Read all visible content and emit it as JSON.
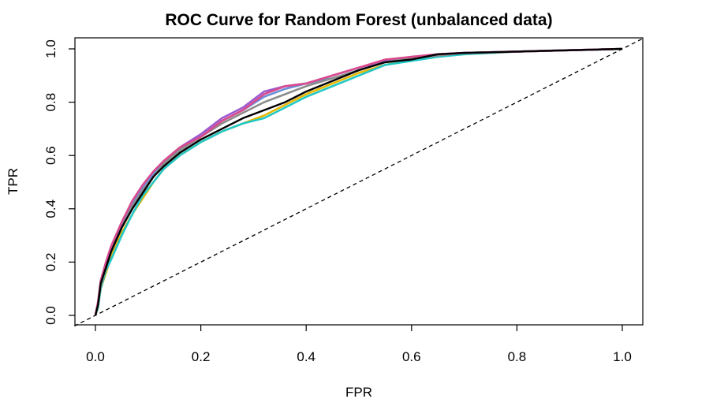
{
  "chart_data": {
    "type": "line",
    "title": "ROC Curve for Random Forest (unbalanced data)",
    "xlabel": "FPR",
    "ylabel": "TPR",
    "xlim": [
      0,
      1
    ],
    "ylim": [
      0,
      1
    ],
    "xticks": [
      0.0,
      0.2,
      0.4,
      0.6,
      0.8,
      1.0
    ],
    "yticks": [
      0.0,
      0.2,
      0.4,
      0.6,
      0.8,
      1.0
    ],
    "xtick_labels": [
      "0.0",
      "0.2",
      "0.4",
      "0.6",
      "0.8",
      "1.0"
    ],
    "ytick_labels": [
      "0.0",
      "0.2",
      "0.4",
      "0.6",
      "0.8",
      "1.0"
    ],
    "grid": false,
    "legend": "none",
    "reference_line": {
      "style": "dashed",
      "color": "#000000",
      "x": [
        0,
        1
      ],
      "y": [
        0,
        1
      ]
    },
    "series": [
      {
        "color": "#000000",
        "x": [
          0,
          0.005,
          0.01,
          0.02,
          0.03,
          0.05,
          0.07,
          0.09,
          0.11,
          0.13,
          0.16,
          0.2,
          0.24,
          0.28,
          0.32,
          0.36,
          0.4,
          0.45,
          0.5,
          0.55,
          0.6,
          0.65,
          0.7,
          0.8,
          0.9,
          1.0
        ],
        "y": [
          0,
          0.04,
          0.12,
          0.18,
          0.24,
          0.33,
          0.4,
          0.46,
          0.52,
          0.56,
          0.61,
          0.66,
          0.7,
          0.74,
          0.77,
          0.8,
          0.84,
          0.88,
          0.92,
          0.95,
          0.96,
          0.98,
          0.985,
          0.99,
          0.995,
          1.0
        ]
      },
      {
        "color": "#e6b800",
        "x": [
          0,
          0.005,
          0.01,
          0.02,
          0.03,
          0.05,
          0.07,
          0.09,
          0.11,
          0.13,
          0.16,
          0.2,
          0.24,
          0.28,
          0.32,
          0.36,
          0.4,
          0.45,
          0.5,
          0.55,
          0.6,
          0.65,
          0.7,
          0.8,
          0.9,
          1.0
        ],
        "y": [
          0,
          0.03,
          0.1,
          0.16,
          0.22,
          0.31,
          0.38,
          0.44,
          0.5,
          0.55,
          0.6,
          0.65,
          0.69,
          0.72,
          0.75,
          0.79,
          0.83,
          0.87,
          0.91,
          0.94,
          0.96,
          0.975,
          0.98,
          0.99,
          0.995,
          1.0
        ]
      },
      {
        "color": "#22c7c7",
        "x": [
          0,
          0.005,
          0.01,
          0.02,
          0.03,
          0.05,
          0.07,
          0.09,
          0.11,
          0.13,
          0.16,
          0.2,
          0.24,
          0.28,
          0.32,
          0.36,
          0.4,
          0.45,
          0.5,
          0.55,
          0.6,
          0.65,
          0.7,
          0.8,
          0.9,
          1.0
        ],
        "y": [
          0,
          0.03,
          0.1,
          0.17,
          0.21,
          0.3,
          0.38,
          0.45,
          0.5,
          0.55,
          0.6,
          0.65,
          0.69,
          0.72,
          0.74,
          0.78,
          0.82,
          0.86,
          0.9,
          0.94,
          0.955,
          0.97,
          0.98,
          0.99,
          0.995,
          1.0
        ]
      },
      {
        "color": "#9b59d0",
        "x": [
          0,
          0.005,
          0.01,
          0.02,
          0.03,
          0.05,
          0.07,
          0.09,
          0.11,
          0.13,
          0.16,
          0.2,
          0.24,
          0.28,
          0.32,
          0.36,
          0.4,
          0.45,
          0.5,
          0.55,
          0.6,
          0.65,
          0.7,
          0.8,
          0.9,
          1.0
        ],
        "y": [
          0,
          0.05,
          0.13,
          0.2,
          0.26,
          0.35,
          0.43,
          0.49,
          0.54,
          0.58,
          0.63,
          0.68,
          0.74,
          0.78,
          0.84,
          0.86,
          0.87,
          0.9,
          0.93,
          0.955,
          0.97,
          0.98,
          0.985,
          0.99,
          0.995,
          1.0
        ]
      },
      {
        "color": "#6a8fd8",
        "x": [
          0,
          0.005,
          0.01,
          0.02,
          0.03,
          0.05,
          0.07,
          0.09,
          0.11,
          0.13,
          0.16,
          0.2,
          0.24,
          0.28,
          0.32,
          0.36,
          0.4,
          0.45,
          0.5,
          0.55,
          0.6,
          0.65,
          0.7,
          0.8,
          0.9,
          1.0
        ],
        "y": [
          0,
          0.05,
          0.12,
          0.19,
          0.25,
          0.34,
          0.42,
          0.48,
          0.53,
          0.58,
          0.62,
          0.67,
          0.73,
          0.77,
          0.82,
          0.85,
          0.87,
          0.89,
          0.92,
          0.95,
          0.965,
          0.975,
          0.985,
          0.99,
          0.995,
          1.0
        ]
      },
      {
        "color": "#8c8c8c",
        "x": [
          0,
          0.005,
          0.01,
          0.02,
          0.03,
          0.05,
          0.07,
          0.09,
          0.11,
          0.13,
          0.16,
          0.2,
          0.24,
          0.28,
          0.32,
          0.36,
          0.4,
          0.45,
          0.5,
          0.55,
          0.6,
          0.65,
          0.7,
          0.8,
          0.9,
          1.0
        ],
        "y": [
          0,
          0.04,
          0.11,
          0.18,
          0.24,
          0.33,
          0.41,
          0.47,
          0.52,
          0.57,
          0.62,
          0.67,
          0.72,
          0.76,
          0.8,
          0.83,
          0.86,
          0.89,
          0.92,
          0.95,
          0.965,
          0.975,
          0.985,
          0.99,
          0.995,
          1.0
        ]
      },
      {
        "color": "#d94a8c",
        "x": [
          0,
          0.005,
          0.01,
          0.02,
          0.03,
          0.05,
          0.07,
          0.09,
          0.11,
          0.13,
          0.16,
          0.2,
          0.24,
          0.28,
          0.32,
          0.36,
          0.4,
          0.45,
          0.5,
          0.55,
          0.6,
          0.65,
          0.7,
          0.8,
          0.9,
          1.0
        ],
        "y": [
          0,
          0.05,
          0.13,
          0.2,
          0.26,
          0.35,
          0.43,
          0.49,
          0.54,
          0.58,
          0.63,
          0.67,
          0.73,
          0.77,
          0.83,
          0.86,
          0.87,
          0.9,
          0.93,
          0.96,
          0.97,
          0.98,
          0.985,
          0.99,
          0.995,
          1.0
        ]
      }
    ]
  }
}
